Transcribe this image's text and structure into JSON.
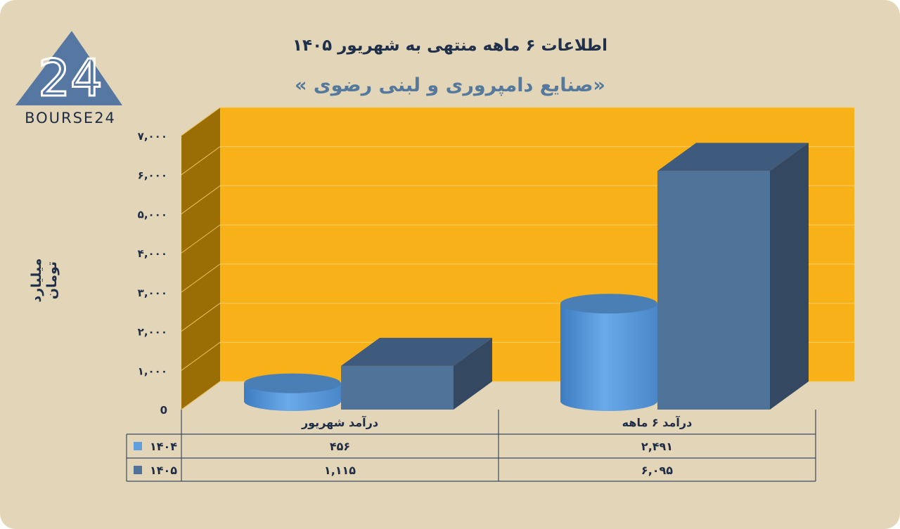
{
  "chart_data": {
    "type": "bar",
    "title": "اطلاعات ۶ ماهه منتهی به شهریور ۱۴۰۵",
    "subtitle": "«صنایع دامپروری و لبنی رضوی »",
    "ylabel": "میلیارد تومان",
    "ylim": [
      0,
      7000
    ],
    "yticks": [
      "0",
      "۱,۰۰۰",
      "۲,۰۰۰",
      "۳,۰۰۰",
      "۴,۰۰۰",
      "۵,۰۰۰",
      "۶,۰۰۰",
      "۷,۰۰۰"
    ],
    "categories": [
      "درآمد ۶ ماهه",
      "درآمد شهریور"
    ],
    "series": [
      {
        "name": "۱۴۰۴",
        "shape": "cylinder",
        "color": "#5f9fde",
        "values": [
          2491,
          456
        ],
        "labels": [
          "۲,۴۹۱",
          "۴۵۶"
        ]
      },
      {
        "name": "۱۴۰۵",
        "shape": "box",
        "color": "#4f7399",
        "values": [
          6095,
          1115
        ],
        "labels": [
          "۶,۰۹۵",
          "۱,۱۱۵"
        ]
      }
    ],
    "grid": true,
    "legend": "data-table",
    "colors": {
      "background": "#e2d5b8",
      "plot_wall": "#f8b118",
      "side_wall": "#9b6e05"
    }
  },
  "logo": {
    "text": "BOURSE24",
    "mark": "24"
  }
}
